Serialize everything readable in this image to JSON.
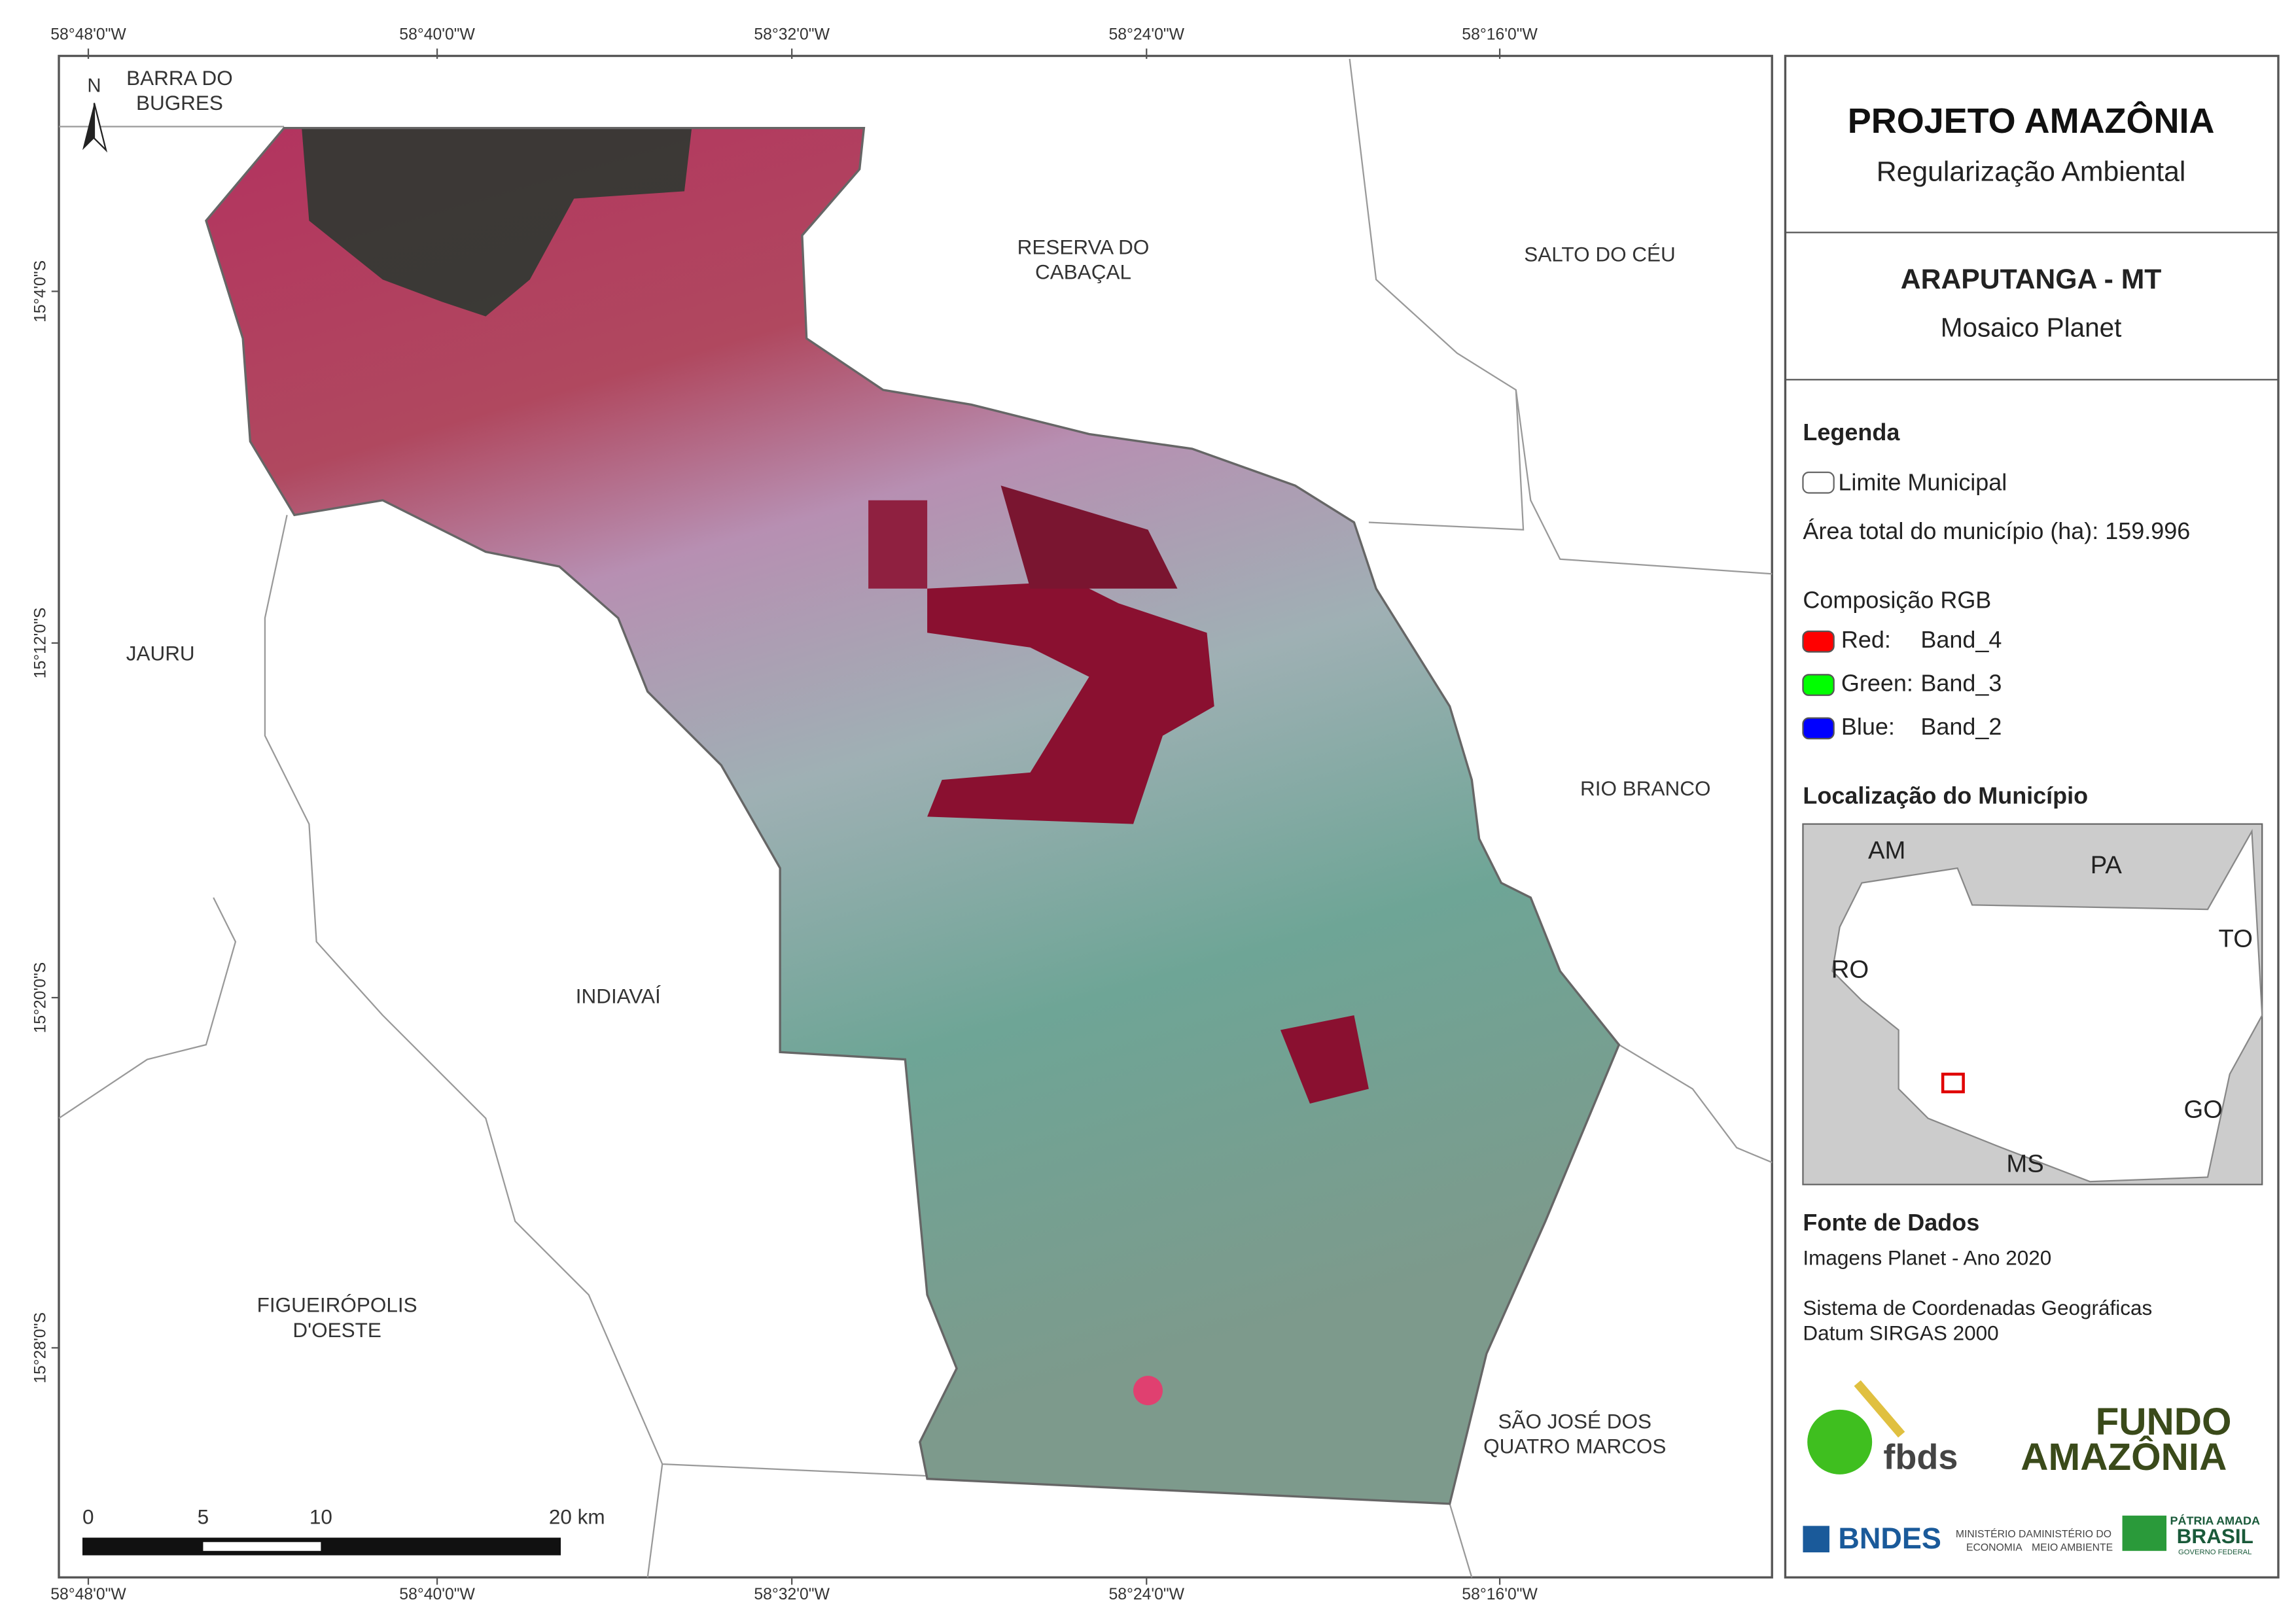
{
  "map": {
    "north_arrow": "N",
    "top_labels": [
      "58°48'0\"W",
      "58°40'0\"W",
      "58°32'0\"W",
      "58°24'0\"W",
      "58°16'0\"W"
    ],
    "bottom_labels": [
      "58°48'0\"W",
      "58°40'0\"W",
      "58°32'0\"W",
      "58°24'0\"W",
      "58°16'0\"W"
    ],
    "left_labels": [
      "15°4'0\"S",
      "15°12'0\"S",
      "15°20'0\"S",
      "15°28'0\"S"
    ],
    "places": [
      [
        "BARRA DO",
        "BUGRES"
      ],
      [
        "RESERVA DO",
        "CABAÇAL"
      ],
      [
        "SALTO DO CÉU"
      ],
      [
        "JAURU"
      ],
      [
        "RIO BRANCO"
      ],
      [
        "INDIAVAÍ"
      ],
      [
        "FIGUEIRÓPOLIS",
        "D'OESTE"
      ],
      [
        "SÃO JOSÉ DOS",
        "QUATRO MARCOS"
      ]
    ],
    "scale_bar": [
      "0",
      "5",
      "10",
      "20 km"
    ]
  },
  "panel": {
    "title": "PROJETO AMAZÔNIA",
    "subtitle": "Regularização Ambiental",
    "municipality": "ARAPUTANGA - MT",
    "product": "Mosaico Planet",
    "legend": {
      "title": "Legenda",
      "boundary": "Limite Municipal",
      "area": "Área total do município (ha): 159.996",
      "rgb_title": "Composição RGB",
      "rgb": [
        {
          "channel": "Red:",
          "band": "Band_4",
          "color": "#ff0000"
        },
        {
          "channel": "Green:",
          "band": "Band_3",
          "color": "#00ff00"
        },
        {
          "channel": "Blue:",
          "band": "Band_2",
          "color": "#0000ff"
        }
      ]
    },
    "location": {
      "title": "Localização do Município",
      "states": [
        "AM",
        "PA",
        "TO",
        "RO",
        "GO",
        "MS"
      ]
    },
    "sources": {
      "title": "Fonte de Dados",
      "lines": [
        "Imagens Planet - Ano 2020",
        "Sistema de Coordenadas Geográficas",
        "Datum SIRGAS 2000"
      ]
    },
    "logos": {
      "fbds": "fbds",
      "fundo": [
        "FUNDO",
        "AMAZÔNIA"
      ],
      "bndes": "BNDES",
      "ministries": [
        [
          "MINISTÉRIO DA",
          "ECONOMIA"
        ],
        [
          "MINISTÉRIO DO",
          "MEIO AMBIENTE"
        ]
      ],
      "brasil": [
        "PÁTRIA AMADA",
        "BRASIL",
        "GOVERNO FEDERAL"
      ]
    }
  }
}
